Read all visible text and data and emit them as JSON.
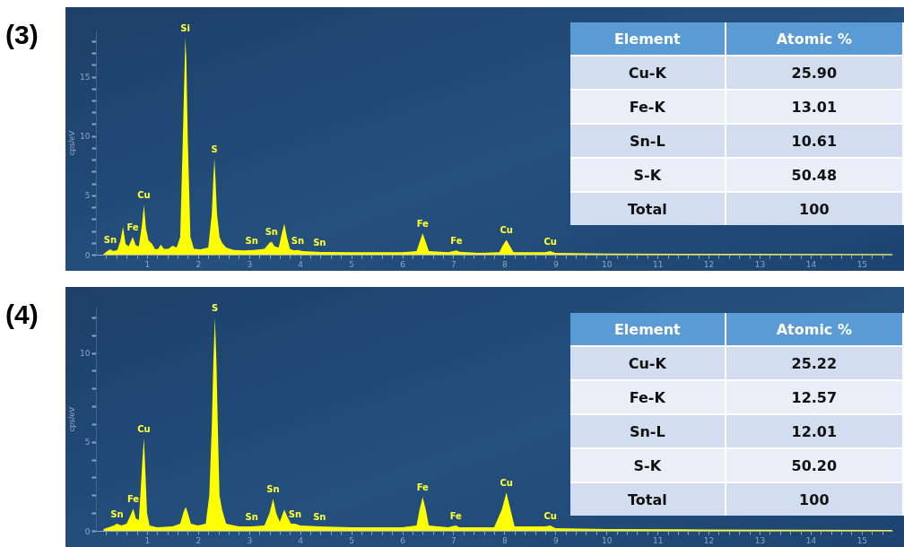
{
  "chart_data": [
    {
      "type": "area",
      "title": "(3)",
      "ylabel": "cps/eV",
      "grid": false,
      "xlim": [
        0,
        15.6
      ],
      "ylim": [
        0,
        18.9
      ],
      "xticks": [
        {
          "value": 0.2,
          "label": null
        },
        {
          "value": 0.4,
          "label": null
        },
        {
          "value": 0.6,
          "label": null
        },
        {
          "value": 0.8,
          "label": null
        },
        1,
        {
          "value": 1.2,
          "label": null
        },
        {
          "value": 1.4,
          "label": null
        },
        {
          "value": 1.6,
          "label": null
        },
        {
          "value": 1.8,
          "label": null
        },
        2,
        {
          "value": 2.2,
          "label": null
        },
        {
          "value": 2.4,
          "label": null
        },
        {
          "value": 2.6,
          "label": null
        },
        {
          "value": 2.8,
          "label": null
        },
        3,
        {
          "value": 3.2,
          "label": null
        },
        {
          "value": 3.4,
          "label": null
        },
        {
          "value": 3.6,
          "label": null
        },
        {
          "value": 3.8,
          "label": null
        },
        4,
        {
          "value": 4.2,
          "label": null
        },
        {
          "value": 4.4,
          "label": null
        },
        {
          "value": 4.6,
          "label": null
        },
        {
          "value": 4.8,
          "label": null
        },
        5,
        {
          "value": 5.2,
          "label": null
        },
        {
          "value": 5.4,
          "label": null
        },
        {
          "value": 5.6,
          "label": null
        },
        {
          "value": 5.8,
          "label": null
        },
        6,
        {
          "value": 6.2,
          "label": null
        },
        {
          "value": 6.4,
          "label": null
        },
        {
          "value": 6.6,
          "label": null
        },
        {
          "value": 6.8,
          "label": null
        },
        7,
        {
          "value": 7.2,
          "label": null
        },
        {
          "value": 7.4,
          "label": null
        },
        {
          "value": 7.6,
          "label": null
        },
        {
          "value": 7.8,
          "label": null
        },
        8,
        {
          "value": 8.2,
          "label": null
        },
        {
          "value": 8.4,
          "label": null
        },
        {
          "value": 8.6,
          "label": null
        },
        {
          "value": 8.8,
          "label": null
        },
        9,
        {
          "value": 9.2,
          "label": null
        },
        {
          "value": 9.4,
          "label": null
        },
        {
          "value": 9.6,
          "label": null
        },
        {
          "value": 9.8,
          "label": null
        },
        10,
        {
          "value": 10.2,
          "label": null
        },
        {
          "value": 10.4,
          "label": null
        },
        {
          "value": 10.6,
          "label": null
        },
        {
          "value": 10.8,
          "label": null
        },
        11,
        {
          "value": 11.2,
          "label": null
        },
        {
          "value": 11.4,
          "label": null
        },
        {
          "value": 11.6,
          "label": null
        },
        {
          "value": 11.8,
          "label": null
        },
        12,
        {
          "value": 12.2,
          "label": null
        },
        {
          "value": 12.4,
          "label": null
        },
        {
          "value": 12.6,
          "label": null
        },
        {
          "value": 12.8,
          "label": null
        },
        13,
        {
          "value": 13.2,
          "label": null
        },
        {
          "value": 13.4,
          "label": null
        },
        {
          "value": 13.6,
          "label": null
        },
        {
          "value": 13.8,
          "label": null
        },
        14,
        {
          "value": 14.2,
          "label": null
        },
        {
          "value": 14.4,
          "label": null
        },
        {
          "value": 14.6,
          "label": null
        },
        {
          "value": 14.8,
          "label": null
        },
        15,
        {
          "value": 15.2,
          "label": null
        },
        {
          "value": 15.4,
          "label": null
        }
      ],
      "yticks": [
        0,
        {
          "value": 1,
          "label": null
        },
        {
          "value": 2,
          "label": null
        },
        {
          "value": 3,
          "label": null
        },
        {
          "value": 4,
          "label": null
        },
        5,
        {
          "value": 6,
          "label": null
        },
        {
          "value": 7,
          "label": null
        },
        {
          "value": 8,
          "label": null
        },
        {
          "value": 9,
          "label": null
        },
        10,
        {
          "value": 11,
          "label": null
        },
        {
          "value": 12,
          "label": null
        },
        {
          "value": 13,
          "label": null
        },
        {
          "value": 14,
          "label": null
        },
        15,
        {
          "value": 16,
          "label": null
        },
        {
          "value": 17,
          "label": null
        },
        {
          "value": 18,
          "label": null
        }
      ],
      "series": [
        {
          "color": "#ffff00",
          "x": [
            0.15,
            0.22,
            0.28,
            0.34,
            0.42,
            0.48,
            0.53,
            0.58,
            0.64,
            0.72,
            0.78,
            0.84,
            0.9,
            0.94,
            0.98,
            1.03,
            1.1,
            1.16,
            1.22,
            1.27,
            1.33,
            1.42,
            1.5,
            1.58,
            1.65,
            1.7,
            1.74,
            1.75,
            1.77,
            1.8,
            1.85,
            1.92,
            2.05,
            2.2,
            2.27,
            2.3,
            2.32,
            2.34,
            2.37,
            2.42,
            2.47,
            2.55,
            2.7,
            2.9,
            3.1,
            3.3,
            3.4,
            3.44,
            3.5,
            3.58,
            3.64,
            3.69,
            3.74,
            3.8,
            3.88,
            3.95,
            4.05,
            4.4,
            5,
            6,
            6.28,
            6.35,
            6.4,
            6.45,
            6.52,
            6.9,
            7,
            7.06,
            7.12,
            7.5,
            7.9,
            7.97,
            8.04,
            8.1,
            8.18,
            8.8,
            8.9,
            9,
            10,
            12,
            15.6
          ],
          "values": [
            0.05,
            0.3,
            0.45,
            0.3,
            0.4,
            1.2,
            2.35,
            0.9,
            0.7,
            1.5,
            0.8,
            0.7,
            2.5,
            4.2,
            2.2,
            1.2,
            0.9,
            0.45,
            0.5,
            0.85,
            0.5,
            0.5,
            0.75,
            0.6,
            1.5,
            9.5,
            16.5,
            18.3,
            16.5,
            9.5,
            1.5,
            0.5,
            0.45,
            0.6,
            3.5,
            6.5,
            8.1,
            6.5,
            3.5,
            1.5,
            1,
            0.6,
            0.4,
            0.35,
            0.4,
            0.5,
            1,
            1.1,
            0.7,
            0.6,
            1.8,
            2.6,
            1.5,
            0.5,
            0.35,
            0.4,
            0.3,
            0.22,
            0.2,
            0.2,
            0.3,
            1.2,
            1.8,
            1.2,
            0.3,
            0.2,
            0.3,
            0.35,
            0.25,
            0.15,
            0.2,
            0.8,
            1.25,
            0.8,
            0.2,
            0.2,
            0.3,
            0.15,
            0.1,
            0.08,
            0.05
          ]
        }
      ],
      "annotations": [
        {
          "text": "Sn",
          "x": 0.28,
          "y": 0.45
        },
        {
          "text": "Fe",
          "x": 0.72,
          "y": 1.5
        },
        {
          "text": "Cu",
          "x": 0.94,
          "y": 4.2
        },
        {
          "text": "Si",
          "x": 1.75,
          "y": 18.3
        },
        {
          "text": "S",
          "x": 2.32,
          "y": 8.1
        },
        {
          "text": "Sn",
          "x": 3.05,
          "y": 0.4
        },
        {
          "text": "Sn",
          "x": 3.44,
          "y": 1.1
        },
        {
          "text": "Sn",
          "x": 3.95,
          "y": 0.4
        },
        {
          "text": "Sn",
          "x": 4.38,
          "y": 0.22
        },
        {
          "text": "Fe",
          "x": 6.4,
          "y": 1.8
        },
        {
          "text": "Fe",
          "x": 7.06,
          "y": 0.35
        },
        {
          "text": "Cu",
          "x": 8.04,
          "y": 1.25
        },
        {
          "text": "Cu",
          "x": 8.9,
          "y": 0.3
        }
      ]
    },
    {
      "type": "other",
      "xlabel": "Element",
      "ylabel": "Atomic %",
      "categories": [
        "Cu-K",
        "Fe-K",
        "Sn-L",
        "S-K",
        "Total"
      ],
      "values": [
        25.9,
        13.01,
        10.61,
        50.48,
        100
      ],
      "value_labels": [
        "25.90",
        "13.01",
        "10.61",
        "50.48",
        "100"
      ]
    },
    {
      "type": "area",
      "title": "(4)",
      "ylabel": "cps/eV",
      "grid": false,
      "xlim": [
        0,
        15.6
      ],
      "ylim": [
        0,
        12.6
      ],
      "xticks": [
        {
          "value": 0.2,
          "label": null
        },
        {
          "value": 0.4,
          "label": null
        },
        {
          "value": 0.6,
          "label": null
        },
        {
          "value": 0.8,
          "label": null
        },
        1,
        {
          "value": 1.2,
          "label": null
        },
        {
          "value": 1.4,
          "label": null
        },
        {
          "value": 1.6,
          "label": null
        },
        {
          "value": 1.8,
          "label": null
        },
        2,
        {
          "value": 2.2,
          "label": null
        },
        {
          "value": 2.4,
          "label": null
        },
        {
          "value": 2.6,
          "label": null
        },
        {
          "value": 2.8,
          "label": null
        },
        3,
        {
          "value": 3.2,
          "label": null
        },
        {
          "value": 3.4,
          "label": null
        },
        {
          "value": 3.6,
          "label": null
        },
        {
          "value": 3.8,
          "label": null
        },
        4,
        {
          "value": 4.2,
          "label": null
        },
        {
          "value": 4.4,
          "label": null
        },
        {
          "value": 4.6,
          "label": null
        },
        {
          "value": 4.8,
          "label": null
        },
        5,
        {
          "value": 5.2,
          "label": null
        },
        {
          "value": 5.4,
          "label": null
        },
        {
          "value": 5.6,
          "label": null
        },
        {
          "value": 5.8,
          "label": null
        },
        6,
        {
          "value": 6.2,
          "label": null
        },
        {
          "value": 6.4,
          "label": null
        },
        {
          "value": 6.6,
          "label": null
        },
        {
          "value": 6.8,
          "label": null
        },
        7,
        {
          "value": 7.2,
          "label": null
        },
        {
          "value": 7.4,
          "label": null
        },
        {
          "value": 7.6,
          "label": null
        },
        {
          "value": 7.8,
          "label": null
        },
        8,
        {
          "value": 8.2,
          "label": null
        },
        {
          "value": 8.4,
          "label": null
        },
        {
          "value": 8.6,
          "label": null
        },
        {
          "value": 8.8,
          "label": null
        },
        9,
        {
          "value": 9.2,
          "label": null
        },
        {
          "value": 9.4,
          "label": null
        },
        {
          "value": 9.6,
          "label": null
        },
        {
          "value": 9.8,
          "label": null
        },
        10,
        {
          "value": 10.2,
          "label": null
        },
        {
          "value": 10.4,
          "label": null
        },
        {
          "value": 10.6,
          "label": null
        },
        {
          "value": 10.8,
          "label": null
        },
        11,
        {
          "value": 11.2,
          "label": null
        },
        {
          "value": 11.4,
          "label": null
        },
        {
          "value": 11.6,
          "label": null
        },
        {
          "value": 11.8,
          "label": null
        },
        12,
        {
          "value": 12.2,
          "label": null
        },
        {
          "value": 12.4,
          "label": null
        },
        {
          "value": 12.6,
          "label": null
        },
        {
          "value": 12.8,
          "label": null
        },
        13,
        {
          "value": 13.2,
          "label": null
        },
        {
          "value": 13.4,
          "label": null
        },
        {
          "value": 13.6,
          "label": null
        },
        {
          "value": 13.8,
          "label": null
        },
        14,
        {
          "value": 14.2,
          "label": null
        },
        {
          "value": 14.4,
          "label": null
        },
        {
          "value": 14.6,
          "label": null
        },
        {
          "value": 14.8,
          "label": null
        },
        15,
        {
          "value": 15.2,
          "label": null
        },
        {
          "value": 15.4,
          "label": null
        }
      ],
      "yticks": [
        0,
        {
          "value": 1,
          "label": null
        },
        {
          "value": 2,
          "label": null
        },
        {
          "value": 3,
          "label": null
        },
        {
          "value": 4,
          "label": null
        },
        5,
        {
          "value": 6,
          "label": null
        },
        {
          "value": 7,
          "label": null
        },
        {
          "value": 8,
          "label": null
        },
        {
          "value": 9,
          "label": null
        },
        10,
        {
          "value": 11,
          "label": null
        },
        {
          "value": 12,
          "label": null
        }
      ],
      "series": [
        {
          "color": "#ffff00",
          "x": [
            0.15,
            0.25,
            0.35,
            0.41,
            0.5,
            0.6,
            0.68,
            0.73,
            0.78,
            0.84,
            0.88,
            0.91,
            0.94,
            0.97,
            1,
            1.05,
            1.2,
            1.5,
            1.65,
            1.72,
            1.76,
            1.8,
            1.86,
            2,
            2.15,
            2.22,
            2.27,
            2.3,
            2.33,
            2.36,
            2.39,
            2.42,
            2.47,
            2.55,
            2.8,
            3.05,
            3.3,
            3.4,
            3.47,
            3.53,
            3.6,
            3.65,
            3.69,
            3.75,
            3.82,
            3.9,
            4,
            4.38,
            5,
            6,
            6.28,
            6.34,
            6.4,
            6.46,
            6.52,
            6.9,
            7,
            7.05,
            7.12,
            7.8,
            7.95,
            8.04,
            8.12,
            8.2,
            8.8,
            8.9,
            9,
            10,
            12,
            15.6
          ],
          "values": [
            0.1,
            0.2,
            0.3,
            0.4,
            0.3,
            0.4,
            0.9,
            1.25,
            0.7,
            0.6,
            2.5,
            4,
            5.2,
            3.2,
            1,
            0.3,
            0.2,
            0.25,
            0.4,
            1.1,
            1.35,
            1,
            0.4,
            0.3,
            0.4,
            2,
            6,
            9.5,
            12,
            9.5,
            5.5,
            2,
            1.2,
            0.4,
            0.25,
            0.25,
            0.3,
            1,
            1.8,
            1,
            0.5,
            0.9,
            1.2,
            0.8,
            0.4,
            0.4,
            0.3,
            0.25,
            0.2,
            0.2,
            0.3,
            1.2,
            1.9,
            1.2,
            0.3,
            0.2,
            0.28,
            0.3,
            0.2,
            0.2,
            1.2,
            2.15,
            1.2,
            0.25,
            0.25,
            0.3,
            0.15,
            0.1,
            0.08,
            0.05
          ]
        }
      ],
      "annotations": [
        {
          "text": "Sn",
          "x": 0.41,
          "y": 0.4
        },
        {
          "text": "Fe",
          "x": 0.73,
          "y": 1.25
        },
        {
          "text": "Cu",
          "x": 0.94,
          "y": 5.2
        },
        {
          "text": "S",
          "x": 2.33,
          "y": 12
        },
        {
          "text": "Sn",
          "x": 3.05,
          "y": 0.25
        },
        {
          "text": "Sn",
          "x": 3.47,
          "y": 1.8
        },
        {
          "text": "Sn",
          "x": 3.9,
          "y": 0.4
        },
        {
          "text": "Sn",
          "x": 4.38,
          "y": 0.25
        },
        {
          "text": "Fe",
          "x": 6.4,
          "y": 1.9
        },
        {
          "text": "Fe",
          "x": 7.05,
          "y": 0.3
        },
        {
          "text": "Cu",
          "x": 8.04,
          "y": 2.15
        },
        {
          "text": "Cu",
          "x": 8.9,
          "y": 0.3
        }
      ]
    },
    {
      "type": "other",
      "xlabel": "Element",
      "ylabel": "Atomic %",
      "categories": [
        "Cu-K",
        "Fe-K",
        "Sn-L",
        "S-K",
        "Total"
      ],
      "values": [
        25.22,
        12.57,
        12.01,
        50.2,
        100
      ],
      "value_labels": [
        "25.22",
        "12.57",
        "12.01",
        "50.20",
        "100"
      ]
    }
  ]
}
